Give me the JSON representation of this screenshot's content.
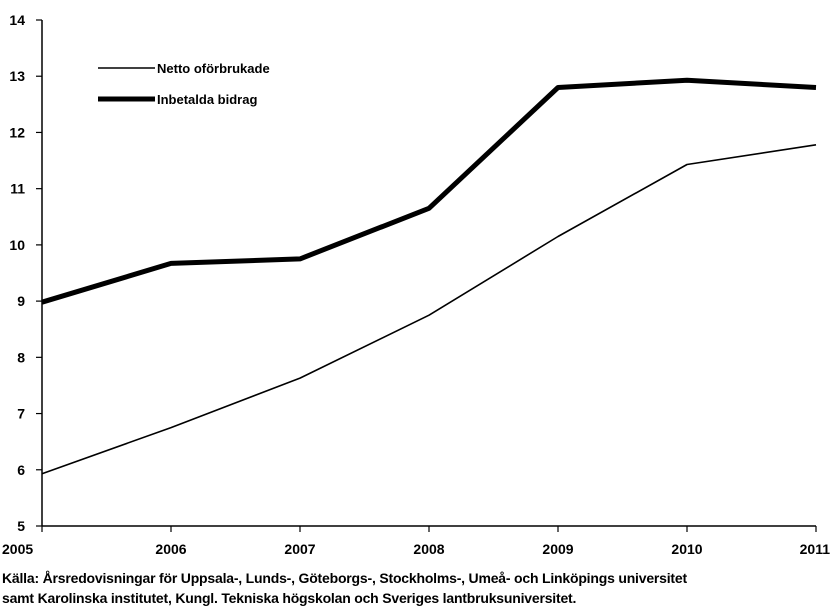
{
  "chart_data": {
    "type": "line",
    "title": "",
    "xlabel": "",
    "ylabel": "",
    "x": [
      2005,
      2006,
      2007,
      2008,
      2009,
      2010,
      2011
    ],
    "xlim": [
      2005,
      2011
    ],
    "ylim": [
      5,
      14
    ],
    "yticks": [
      5,
      6,
      7,
      8,
      9,
      10,
      11,
      12,
      13,
      14
    ],
    "grid": false,
    "legend_position": "top-left",
    "series": [
      {
        "name": "Netto oförbrukade",
        "style": "thin",
        "color": "#000000",
        "values": [
          5.93,
          6.75,
          7.63,
          8.75,
          10.15,
          11.43,
          11.78
        ]
      },
      {
        "name": "Inbetalda bidrag",
        "style": "thick",
        "color": "#000000",
        "values": [
          8.98,
          9.67,
          9.75,
          10.65,
          12.8,
          12.93,
          12.8
        ]
      }
    ]
  },
  "source": {
    "line1": "Källa: Årsredovisningar för Uppsala-, Lunds-, Göteborgs-, Stockholms-, Umeå- och Linköpings universitet",
    "line2": "samt Karolinska institutet, Kungl. Tekniska högskolan och Sveriges lantbruksuniversitet."
  }
}
